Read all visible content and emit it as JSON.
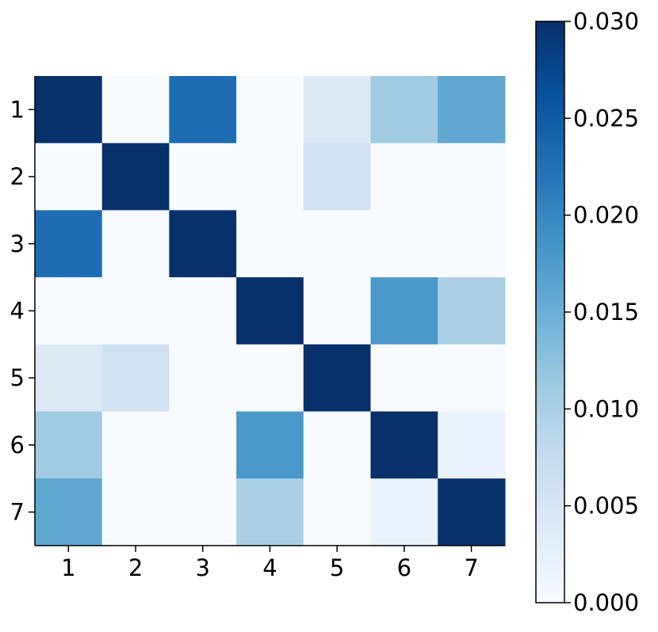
{
  "chart_data": {
    "type": "heatmap",
    "x_ticks": [
      "1",
      "2",
      "3",
      "4",
      "5",
      "6",
      "7"
    ],
    "y_ticks": [
      "1",
      "2",
      "3",
      "4",
      "5",
      "6",
      "7"
    ],
    "values": [
      [
        0.03,
        0.0,
        0.023,
        0.0,
        0.004,
        0.011,
        0.016
      ],
      [
        0.0,
        0.03,
        0.0,
        0.0,
        0.006,
        0.0,
        0.0
      ],
      [
        0.023,
        0.0,
        0.03,
        0.0,
        0.0,
        0.0,
        0.0
      ],
      [
        0.0,
        0.0,
        0.0,
        0.03,
        0.0,
        0.018,
        0.01
      ],
      [
        0.004,
        0.006,
        0.0,
        0.0,
        0.03,
        0.0,
        0.0
      ],
      [
        0.011,
        0.0,
        0.0,
        0.018,
        0.0,
        0.03,
        0.002
      ],
      [
        0.016,
        0.0,
        0.0,
        0.01,
        0.0,
        0.002,
        0.03
      ]
    ],
    "colorbar": {
      "range": [
        0.0,
        0.03
      ],
      "ticks": [
        "0.000",
        "0.005",
        "0.010",
        "0.015",
        "0.020",
        "0.025",
        "0.030"
      ],
      "colormap": "Blues",
      "location": "right"
    },
    "title": "",
    "xlabel": "",
    "ylabel": ""
  },
  "colors": {
    "scale": [
      "#f7fbff",
      "#deebf7",
      "#c6dbef",
      "#9ecae1",
      "#6baed6",
      "#4292c6",
      "#2171b5",
      "#08519c",
      "#08306b"
    ]
  }
}
